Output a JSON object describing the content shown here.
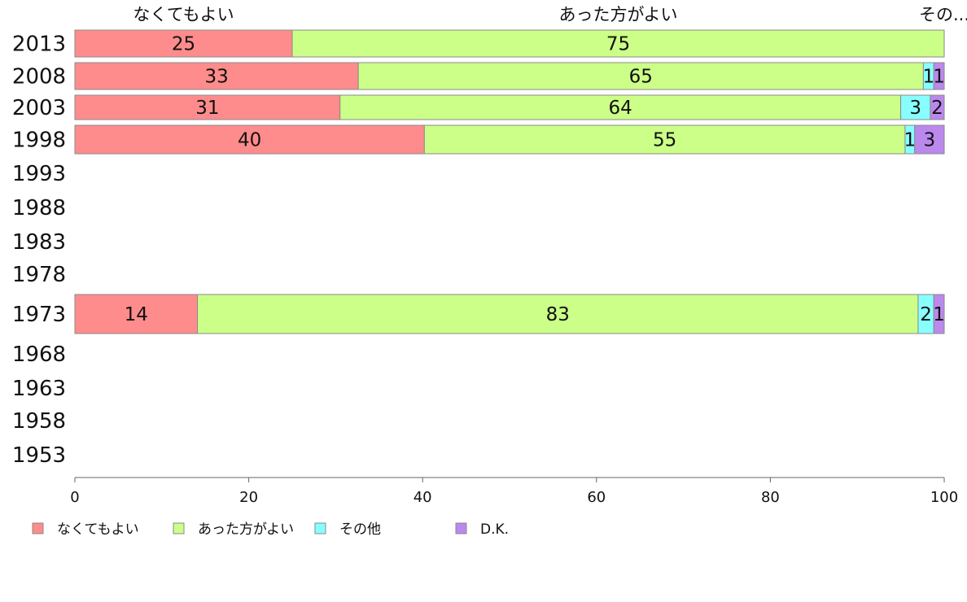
{
  "chart_data": {
    "type": "bar",
    "orientation": "horizontal",
    "stacked": true,
    "categories": [
      "2013",
      "2008",
      "2003",
      "1998",
      "1993",
      "1988",
      "1983",
      "1978",
      "1973",
      "1968",
      "1963",
      "1958",
      "1953"
    ],
    "series": [
      {
        "name": "なくてもよい",
        "color": "#ff8c8c",
        "values": [
          25,
          32.6,
          30.5,
          40.2,
          null,
          null,
          null,
          null,
          14.1,
          null,
          null,
          null,
          null
        ],
        "labels": [
          "25",
          "33",
          "31",
          "40",
          "",
          "",
          "",
          "",
          "14",
          "",
          "",
          "",
          ""
        ]
      },
      {
        "name": "あった方がよい",
        "color": "#ccff88",
        "values": [
          75,
          65,
          64.5,
          55.3,
          null,
          null,
          null,
          null,
          82.9,
          null,
          null,
          null,
          null
        ],
        "labels": [
          "75",
          "65",
          "64",
          "55",
          "",
          "",
          "",
          "",
          "83",
          "",
          "",
          "",
          ""
        ]
      },
      {
        "name": "その他",
        "color": "#88ffff",
        "values": [
          0,
          1.2,
          3.4,
          1.1,
          null,
          null,
          null,
          null,
          1.8,
          null,
          null,
          null,
          null
        ],
        "labels": [
          "",
          "1",
          "3",
          "1",
          "",
          "",
          "",
          "",
          "2",
          "",
          "",
          "",
          ""
        ]
      },
      {
        "name": "D.K.",
        "color": "#bb88ee",
        "values": [
          0,
          1.2,
          1.6,
          3.4,
          null,
          null,
          null,
          null,
          1.2,
          null,
          null,
          null,
          null
        ],
        "labels": [
          "",
          "1",
          "2",
          "3",
          "",
          "",
          "",
          "",
          "1",
          "",
          "",
          "",
          ""
        ]
      }
    ],
    "top_labels": [
      "なくてもよい",
      "あった方がよい",
      "その..."
    ],
    "xlim": [
      0,
      100
    ],
    "xticks": [
      "0",
      "20",
      "40",
      "60",
      "80",
      "100"
    ],
    "grid": false,
    "legend_position": "bottom"
  }
}
